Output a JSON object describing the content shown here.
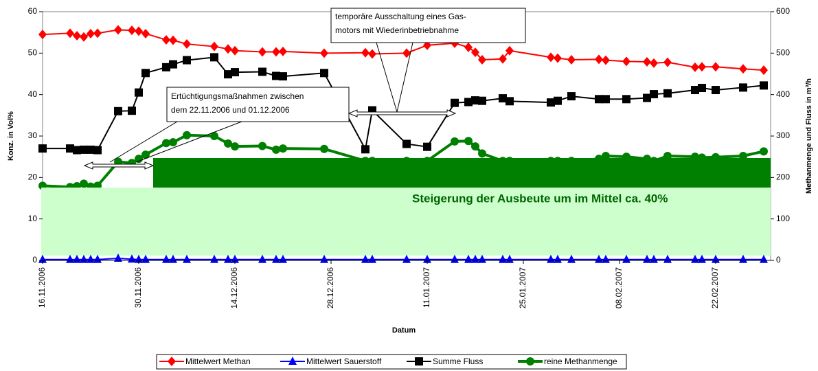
{
  "chart_data": {
    "type": "line",
    "x_label": "Datum",
    "y_label": "Konz. in Vol%",
    "y2_label": "Methanmenge und Fluss in m³/h",
    "x": [
      "16.11.2006",
      "20.11.2006",
      "21.11.2006",
      "22.11.2006",
      "23.11.2006",
      "24.11.2006",
      "27.11.2006",
      "29.11.2006",
      "30.11.2006",
      "01.12.2006",
      "04.12.2006",
      "05.12.2006",
      "07.12.2006",
      "11.12.2006",
      "13.12.2006",
      "14.12.2006",
      "18.12.2006",
      "20.12.2006",
      "21.12.2006",
      "27.12.2006",
      "02.01.2007",
      "03.01.2007",
      "08.01.2007",
      "11.01.2007",
      "15.01.2007",
      "17.01.2007",
      "18.01.2007",
      "19.01.2007",
      "22.01.2007",
      "23.01.2007",
      "29.01.2007",
      "30.01.2007",
      "01.02.2007",
      "05.02.2007",
      "06.02.2007",
      "09.02.2007",
      "12.02.2007",
      "13.02.2007",
      "15.02.2007",
      "19.02.2007",
      "20.02.2007",
      "22.02.2007",
      "26.02.2007",
      "01.03.2007"
    ],
    "xlim": [
      "16.11.2006",
      "02.03.2007"
    ],
    "xticks": [
      "16.11.2006",
      "30.11.2006",
      "14.12.2006",
      "28.12.2006",
      "11.01.2007",
      "25.01.2007",
      "08.02.2007",
      "22.02.2007"
    ],
    "ylim": [
      0,
      60
    ],
    "yticks": [
      0,
      10,
      20,
      30,
      40,
      50,
      60
    ],
    "y2lim": [
      0,
      600
    ],
    "y2ticks": [
      0,
      100,
      200,
      300,
      400,
      500,
      600
    ],
    "series": [
      {
        "name": "reine Methanmenge",
        "color": "#008000",
        "marker": "circle",
        "axis": "y2",
        "values": [
          180,
          177,
          179,
          185,
          178,
          180,
          238,
          235,
          245,
          255,
          283,
          285,
          302,
          300,
          282,
          275,
          276,
          267,
          270,
          269,
          240,
          240,
          240,
          240,
          287,
          288,
          275,
          258,
          240,
          240,
          240,
          240,
          240,
          245,
          252,
          250,
          245,
          240,
          252,
          250,
          248,
          249,
          252,
          263
        ]
      },
      {
        "name": "Summe Fluss",
        "color": "#000000",
        "marker": "square",
        "axis": "y2",
        "values": [
          270,
          270,
          266,
          267,
          267,
          266,
          360,
          361,
          405,
          452,
          466,
          473,
          483,
          490,
          449,
          454,
          455,
          445,
          444,
          452,
          268,
          362,
          281,
          274,
          380,
          382,
          386,
          385,
          391,
          384,
          381,
          385,
          396,
          389,
          389,
          389,
          392,
          401,
          403,
          411,
          416,
          411,
          417,
          422
        ]
      },
      {
        "name": "Mittelwert Methan",
        "color": "#ff0000",
        "marker": "diamond",
        "values": [
          54.5,
          54.8,
          54.2,
          53.9,
          54.7,
          54.8,
          55.6,
          55.5,
          55.3,
          54.7,
          53.2,
          53.1,
          52.2,
          51.6,
          51.0,
          50.6,
          50.3,
          50.3,
          50.4,
          50.0,
          50.1,
          49.8,
          50.0,
          51.9,
          52.4,
          51.4,
          50.2,
          48.4,
          48.6,
          50.6,
          49.0,
          48.8,
          48.4,
          48.5,
          48.3,
          48.0,
          47.9,
          47.6,
          47.8,
          46.6,
          46.7,
          46.7,
          46.2,
          45.9
        ]
      },
      {
        "name": "Mittelwert Sauerstoff",
        "color": "#0000ff",
        "marker": "triangle",
        "values": [
          0.2,
          0.2,
          0.2,
          0.2,
          0.2,
          0.2,
          0.5,
          0.3,
          0.2,
          0.2,
          0.2,
          0.2,
          0.2,
          0.2,
          0.2,
          0.2,
          0.2,
          0.2,
          0.2,
          0.2,
          0.2,
          0.2,
          0.2,
          0.2,
          0.2,
          0.2,
          0.2,
          0.2,
          0.2,
          0.2,
          0.2,
          0.2,
          0.2,
          0.2,
          0.2,
          0.2,
          0.2,
          0.2,
          0.2,
          0.2,
          0.2,
          0.2,
          0.2,
          0.2
        ]
      }
    ],
    "legend_order": [
      2,
      3,
      1,
      0
    ],
    "annotations": [
      "Ertüchtigungsmaßnahmen zwischen",
      "dem 22.11.2006 und 01.12.2006",
      "temporäre Ausschaltung eines Gas-",
      "motors mit Wiederinbetriebnahme",
      "Steigerung der Ausbeute um im Mittel ca. 40%"
    ]
  }
}
